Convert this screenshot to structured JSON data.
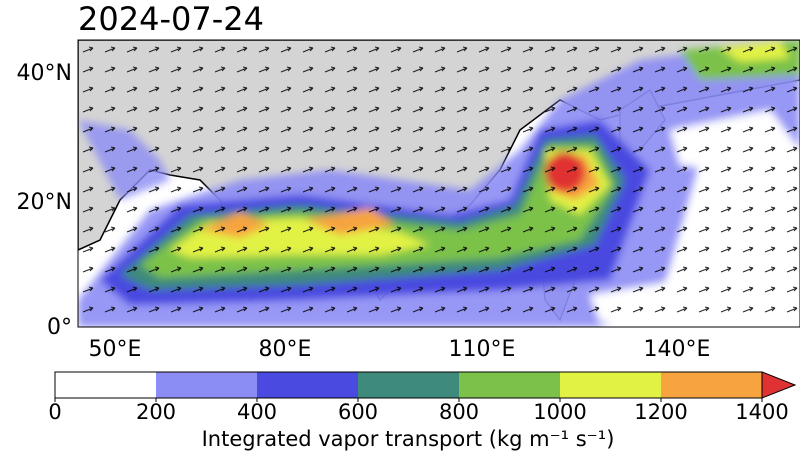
{
  "title": "2024-07-24",
  "map": {
    "lat_labels": [
      "0°",
      "20°N",
      "40°N"
    ],
    "lon_labels": [
      "50°E",
      "80°E",
      "110°E",
      "140°E"
    ]
  },
  "colorbar": {
    "ticks": [
      0,
      200,
      400,
      600,
      800,
      1000,
      1200,
      1400
    ],
    "colors": [
      "#ffffff",
      "#8c8cf5",
      "#4a4ae0",
      "#3e8a7c",
      "#7cc24a",
      "#e2f244",
      "#f7a440"
    ],
    "extend_color": "#e03232",
    "label": "Integrated vapor transport (kg m⁻¹ s⁻¹)"
  }
}
